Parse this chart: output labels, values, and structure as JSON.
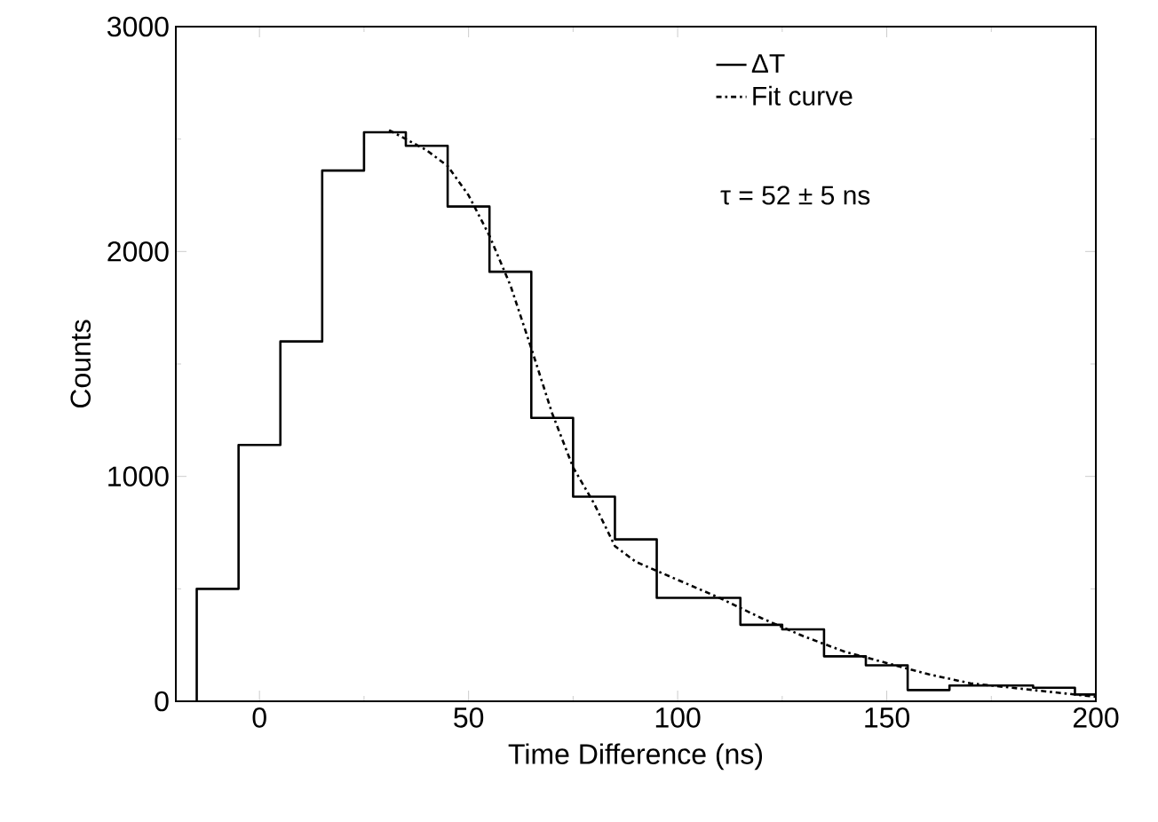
{
  "chart_data": {
    "type": "step",
    "xlabel": "Time Difference (ns)",
    "ylabel": "Counts",
    "xlim": [
      -20,
      200
    ],
    "ylim": [
      0,
      3000
    ],
    "xticks": [
      0,
      50,
      100,
      150,
      200
    ],
    "yticks": [
      0,
      1000,
      2000,
      3000
    ],
    "legend": "top right",
    "annotations": [
      "τ = 52 ± 5 ns"
    ],
    "series": [
      {
        "name": "ΔT",
        "color": "#000000",
        "line_style": "solid",
        "x": [
          -15,
          -15,
          -5,
          5,
          15,
          25,
          35,
          45,
          55,
          65,
          75,
          85,
          95,
          105,
          115,
          125,
          135,
          145,
          155,
          165,
          175,
          185,
          195,
          200
        ],
        "values": [
          0,
          500,
          1140,
          1600,
          2360,
          2530,
          2470,
          2200,
          1910,
          1260,
          910,
          720,
          460,
          460,
          340,
          320,
          200,
          160,
          50,
          70,
          70,
          60,
          30,
          30
        ]
      },
      {
        "name": "Fit curve",
        "type": "line",
        "color": "#000000",
        "line_style": "dashdot",
        "x": [
          31,
          35,
          40,
          45,
          50,
          55,
          60,
          65,
          70,
          75,
          80,
          85,
          90,
          100,
          110,
          120,
          130,
          140,
          150,
          160,
          170,
          180,
          190,
          200
        ],
        "values": [
          2540,
          2500,
          2450,
          2380,
          2250,
          2070,
          1850,
          1570,
          1280,
          1040,
          880,
          690,
          620,
          540,
          460,
          370,
          290,
          220,
          170,
          120,
          80,
          60,
          40,
          20
        ]
      }
    ]
  }
}
